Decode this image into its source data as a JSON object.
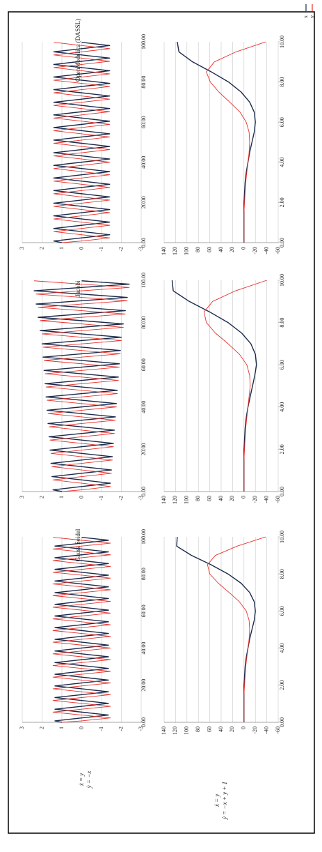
{
  "row_labels": [
    [
      "ẋ = y",
      "ẏ = −x"
    ],
    [
      "ẋ = y",
      "ẏ = −x + y + 1"
    ]
  ],
  "chart_data": [
    {
      "type": "line",
      "title": "Gauss Seidel",
      "x": [
        0,
        0.79,
        2.36,
        3.93,
        5.5,
        7.07,
        8.64,
        10.21,
        11.78,
        13.35,
        14.92,
        16.49,
        18.06,
        19.63,
        21.21,
        22.78,
        24.35,
        25.92,
        27.49,
        29.06,
        30.63,
        32.2,
        33.77,
        35.34,
        36.91,
        38.48,
        40.06,
        41.63,
        43.2,
        44.77,
        46.34,
        47.91,
        49.48,
        51.05,
        52.62,
        54.19,
        55.76,
        57.33,
        58.9,
        60.48,
        62.05,
        63.62,
        65.19,
        66.76,
        68.33,
        69.9,
        71.47,
        73.04,
        74.61,
        76.18,
        77.75,
        79.33,
        80.9,
        82.47,
        84.04,
        85.61,
        87.18,
        88.75,
        90.32,
        91.89,
        93.46,
        95.03,
        96.6,
        98.17,
        99.75
      ],
      "series": [
        {
          "name": "x",
          "color": "#1c2a4a",
          "values": [
            1,
            1.35,
            0,
            -1.35,
            0,
            1.35,
            0,
            -1.35,
            0,
            1.35,
            0,
            -1.35,
            0,
            1.35,
            0,
            -1.35,
            0,
            1.35,
            0,
            -1.35,
            0,
            1.35,
            0,
            -1.35,
            0,
            1.35,
            0,
            -1.35,
            0,
            1.35,
            0,
            -1.35,
            0,
            1.35,
            0,
            -1.35,
            0,
            1.35,
            0,
            -1.35,
            0,
            1.35,
            0,
            -1.35,
            0,
            1.35,
            0,
            -1.35,
            0,
            1.35,
            0,
            -1.35,
            0,
            1.35,
            0,
            -1.35,
            0,
            1.35,
            0,
            -1.35,
            0,
            1.35,
            0,
            -1.35,
            0
          ]
        },
        {
          "name": "y",
          "color": "#e8302a",
          "values": [
            1,
            0,
            -1.45,
            0,
            1.45,
            0,
            -1.45,
            0,
            1.45,
            0,
            -1.45,
            0,
            1.45,
            0,
            -1.45,
            0,
            1.45,
            0,
            -1.45,
            0,
            1.45,
            0,
            -1.45,
            0,
            1.45,
            0,
            -1.45,
            0,
            1.45,
            0,
            -1.45,
            0,
            1.45,
            0,
            -1.45,
            0,
            1.45,
            0,
            -1.45,
            0,
            1.45,
            0,
            -1.45,
            0,
            1.45,
            0,
            -1.45,
            0,
            1.45,
            0,
            -1.45,
            0,
            1.45,
            0,
            -1.45,
            0,
            1.45,
            0,
            -1.45,
            0,
            1.45,
            0,
            -1.45,
            0,
            1.45
          ]
        }
      ],
      "xlim": [
        0,
        100
      ],
      "xticks": [
        {
          "value": 0,
          "label": "0.00"
        },
        {
          "value": 20,
          "label": "20.00"
        },
        {
          "value": 40,
          "label": "40.00"
        },
        {
          "value": 60,
          "label": "60.00"
        },
        {
          "value": 80,
          "label": "80.00"
        },
        {
          "value": 100,
          "label": "100.00"
        }
      ],
      "ylim": [
        -3,
        3
      ],
      "yticks": [
        3,
        2,
        1,
        0,
        -1,
        -2,
        -3
      ],
      "grid": true
    },
    {
      "type": "line",
      "x": [
        0,
        0.5,
        1,
        1.5,
        2,
        2.5,
        3,
        3.5,
        4,
        4.5,
        5,
        5.5,
        6,
        6.5,
        7,
        7.5,
        8,
        8.5,
        9,
        9.5,
        10
      ],
      "series": [
        {
          "name": "x",
          "color": "#1c2a4a",
          "values": [
            0,
            0,
            0,
            0,
            0,
            -1,
            -2,
            -4,
            -7,
            -10,
            -14,
            -18,
            -20,
            -18,
            -10,
            5,
            28,
            58,
            92,
            118,
            117
          ]
        },
        {
          "name": "y",
          "color": "#e8302a",
          "values": [
            0,
            0,
            0,
            0,
            -1,
            -2,
            -3,
            -5,
            -7,
            -9,
            -10,
            -9,
            -4,
            8,
            26,
            45,
            60,
            64,
            50,
            12,
            -38
          ]
        }
      ],
      "xlim": [
        0,
        10
      ],
      "xticks": [
        {
          "value": 0,
          "label": "0.00"
        },
        {
          "value": 2,
          "label": "2.00"
        },
        {
          "value": 4,
          "label": "4.00"
        },
        {
          "value": 6,
          "label": "6.00"
        },
        {
          "value": 8,
          "label": "8.00"
        },
        {
          "value": 10,
          "label": "10.00"
        }
      ],
      "ylim": [
        -60,
        140
      ],
      "yticks": [
        140,
        120,
        100,
        80,
        60,
        40,
        20,
        0,
        -20,
        -40,
        -60
      ],
      "grid": true
    },
    {
      "type": "line",
      "title": "Jacobi",
      "x": [
        0,
        0.79,
        2.36,
        3.93,
        5.5,
        7.07,
        8.64,
        10.21,
        11.78,
        13.35,
        14.92,
        16.49,
        18.06,
        19.63,
        21.21,
        22.78,
        24.35,
        25.92,
        27.49,
        29.06,
        30.63,
        32.2,
        33.77,
        35.34,
        36.91,
        38.48,
        40.06,
        41.63,
        43.2,
        44.77,
        46.34,
        47.91,
        49.48,
        51.05,
        52.62,
        54.19,
        55.76,
        57.33,
        58.9,
        60.48,
        62.05,
        63.62,
        65.19,
        66.76,
        68.33,
        69.9,
        71.47,
        73.04,
        74.61,
        76.18,
        77.75,
        79.33,
        80.9,
        82.47,
        84.04,
        85.61,
        87.18,
        88.75,
        90.32,
        91.89,
        93.46,
        95.03,
        96.6,
        98.17,
        99.75
      ],
      "series": [
        {
          "name": "x",
          "color": "#1c2a4a",
          "values": [
            1,
            1.45,
            0,
            -1.45,
            0,
            1.5,
            0,
            -1.5,
            0,
            1.55,
            0,
            -1.55,
            0,
            1.6,
            0,
            -1.6,
            0,
            1.65,
            0,
            -1.65,
            0,
            1.7,
            0,
            -1.7,
            0,
            1.75,
            0,
            -1.75,
            0,
            1.8,
            0,
            -1.8,
            0,
            1.85,
            0,
            -1.85,
            0,
            1.9,
            0,
            -1.9,
            0,
            1.95,
            0,
            -1.95,
            0,
            2.0,
            0,
            -2.0,
            0,
            2.1,
            0,
            -2.1,
            0,
            2.2,
            0,
            -2.2,
            0,
            2.3,
            0,
            -2.3,
            0,
            2.4,
            0,
            -2.4,
            0
          ]
        },
        {
          "name": "y",
          "color": "#e8302a",
          "values": [
            1,
            0,
            -1.45,
            0,
            1.45,
            0,
            -1.5,
            0,
            1.5,
            0,
            -1.55,
            0,
            1.55,
            0,
            -1.6,
            0,
            1.6,
            0,
            -1.65,
            0,
            1.65,
            0,
            -1.7,
            0,
            1.7,
            0,
            -1.75,
            0,
            1.75,
            0,
            -1.8,
            0,
            1.8,
            0,
            -1.85,
            0,
            1.85,
            0,
            -1.9,
            0,
            1.9,
            0,
            -1.95,
            0,
            1.95,
            0,
            -2.0,
            0,
            2.0,
            0,
            -2.1,
            0,
            2.1,
            0,
            -2.2,
            0,
            2.2,
            0,
            -2.3,
            0,
            2.3,
            0,
            -2.4,
            0,
            2.4
          ]
        }
      ],
      "xlim": [
        0,
        100
      ],
      "xticks": [
        {
          "value": 0,
          "label": "0.00"
        },
        {
          "value": 20,
          "label": "20.00"
        },
        {
          "value": 40,
          "label": "40.00"
        },
        {
          "value": 60,
          "label": "60.00"
        },
        {
          "value": 80,
          "label": "80.00"
        },
        {
          "value": 100,
          "label": "100.00"
        }
      ],
      "ylim": [
        -3,
        3
      ],
      "yticks": [
        3,
        2,
        1,
        0,
        -1,
        -2,
        -3
      ],
      "grid": true
    },
    {
      "type": "line",
      "x": [
        0,
        0.5,
        1,
        1.5,
        2,
        2.5,
        3,
        3.5,
        4,
        4.5,
        5,
        5.5,
        6,
        6.5,
        7,
        7.5,
        8,
        8.5,
        9,
        9.5,
        10
      ],
      "series": [
        {
          "name": "x",
          "color": "#1c2a4a",
          "values": [
            0,
            0,
            0,
            0,
            0,
            -1,
            -2,
            -4,
            -7,
            -11,
            -15,
            -19,
            -22,
            -20,
            -12,
            4,
            28,
            60,
            96,
            124,
            126
          ]
        },
        {
          "name": "y",
          "color": "#e8302a",
          "values": [
            0,
            0,
            0,
            0,
            -1,
            -2,
            -3,
            -5,
            -7,
            -9,
            -11,
            -10,
            -5,
            8,
            28,
            50,
            66,
            70,
            55,
            15,
            -40
          ]
        }
      ],
      "xlim": [
        0,
        10
      ],
      "xticks": [
        {
          "value": 0,
          "label": "0.00"
        },
        {
          "value": 2,
          "label": "2.00"
        },
        {
          "value": 4,
          "label": "4.00"
        },
        {
          "value": 6,
          "label": "6.00"
        },
        {
          "value": 8,
          "label": "8.00"
        },
        {
          "value": 10,
          "label": "10.00"
        }
      ],
      "ylim": [
        -60,
        140
      ],
      "yticks": [
        140,
        120,
        100,
        80,
        60,
        40,
        20,
        0,
        -20,
        -40,
        -60
      ],
      "grid": true
    },
    {
      "type": "line",
      "title": "OpenModelica (DASSL)",
      "x": [
        0,
        0.79,
        2.36,
        3.93,
        5.5,
        7.07,
        8.64,
        10.21,
        11.78,
        13.35,
        14.92,
        16.49,
        18.06,
        19.63,
        21.21,
        22.78,
        24.35,
        25.92,
        27.49,
        29.06,
        30.63,
        32.2,
        33.77,
        35.34,
        36.91,
        38.48,
        40.06,
        41.63,
        43.2,
        44.77,
        46.34,
        47.91,
        49.48,
        51.05,
        52.62,
        54.19,
        55.76,
        57.33,
        58.9,
        60.48,
        62.05,
        63.62,
        65.19,
        66.76,
        68.33,
        69.9,
        71.47,
        73.04,
        74.61,
        76.18,
        77.75,
        79.33,
        80.9,
        82.47,
        84.04,
        85.61,
        87.18,
        88.75,
        90.32,
        91.89,
        93.46,
        95.03,
        96.6,
        98.17,
        99.75
      ],
      "series": [
        {
          "name": "x",
          "color": "#1c2a4a",
          "values": [
            1,
            1.41,
            0,
            -1.41,
            0,
            1.41,
            0,
            -1.41,
            0,
            1.41,
            0,
            -1.41,
            0,
            1.41,
            0,
            -1.41,
            0,
            1.41,
            0,
            -1.41,
            0,
            1.41,
            0,
            -1.41,
            0,
            1.41,
            0,
            -1.41,
            0,
            1.41,
            0,
            -1.41,
            0,
            1.41,
            0,
            -1.41,
            0,
            1.41,
            0,
            -1.41,
            0,
            1.41,
            0,
            -1.41,
            0,
            1.41,
            0,
            -1.41,
            0,
            1.41,
            0,
            -1.41,
            0,
            1.41,
            0,
            -1.41,
            0,
            1.41,
            0,
            -1.41,
            0,
            1.41,
            0,
            -1.41,
            0
          ]
        },
        {
          "name": "y",
          "color": "#e8302a",
          "values": [
            1,
            0,
            -1.41,
            0,
            1.41,
            0,
            -1.41,
            0,
            1.41,
            0,
            -1.41,
            0,
            1.41,
            0,
            -1.41,
            0,
            1.41,
            0,
            -1.41,
            0,
            1.41,
            0,
            -1.41,
            0,
            1.41,
            0,
            -1.41,
            0,
            1.41,
            0,
            -1.41,
            0,
            1.41,
            0,
            -1.41,
            0,
            1.41,
            0,
            -1.41,
            0,
            1.41,
            0,
            -1.41,
            0,
            1.41,
            0,
            -1.41,
            0,
            1.41,
            0,
            -1.41,
            0,
            1.41,
            0,
            -1.41,
            0,
            1.41,
            0,
            -1.41,
            0,
            1.41,
            0,
            -1.41,
            0,
            1.41
          ]
        }
      ],
      "xlim": [
        0,
        100
      ],
      "xticks": [
        {
          "value": 0,
          "label": "0.00"
        },
        {
          "value": 20,
          "label": "20.00"
        },
        {
          "value": 40,
          "label": "40.00"
        },
        {
          "value": 60,
          "label": "60.00"
        },
        {
          "value": 80,
          "label": "80.00"
        },
        {
          "value": 100,
          "label": "100.00"
        }
      ],
      "ylim": [
        -3,
        3
      ],
      "yticks": [
        3,
        2,
        1,
        0,
        -1,
        -2,
        -3
      ],
      "grid": true
    },
    {
      "type": "line",
      "x": [
        0,
        0.5,
        1,
        1.5,
        2,
        2.5,
        3,
        3.5,
        4,
        4.5,
        5,
        5.5,
        6,
        6.5,
        7,
        7.5,
        8,
        8.5,
        9,
        9.5,
        10
      ],
      "series": [
        {
          "name": "x",
          "color": "#1c2a4a",
          "values": [
            0,
            0,
            0,
            0,
            0,
            -1,
            -2,
            -4,
            -7,
            -10,
            -14,
            -18,
            -20,
            -18,
            -10,
            5,
            27,
            57,
            90,
            114,
            117
          ]
        },
        {
          "name": "y",
          "color": "#e8302a",
          "values": [
            0,
            0,
            0,
            0,
            -1,
            -2,
            -3,
            -5,
            -7,
            -9,
            -10,
            -9,
            -4,
            7,
            25,
            44,
            59,
            66,
            52,
            14,
            -38
          ]
        }
      ],
      "xlim": [
        0,
        10
      ],
      "xticks": [
        {
          "value": 0,
          "label": "0.00"
        },
        {
          "value": 2,
          "label": "2.00"
        },
        {
          "value": 4,
          "label": "4.00"
        },
        {
          "value": 6,
          "label": "6.00"
        },
        {
          "value": 8,
          "label": "8.00"
        },
        {
          "value": 10,
          "label": "10.00"
        }
      ],
      "ylim": [
        -60,
        140
      ],
      "yticks": [
        140,
        120,
        100,
        80,
        60,
        40,
        20,
        0,
        -20,
        -40,
        -60
      ],
      "grid": true
    }
  ]
}
